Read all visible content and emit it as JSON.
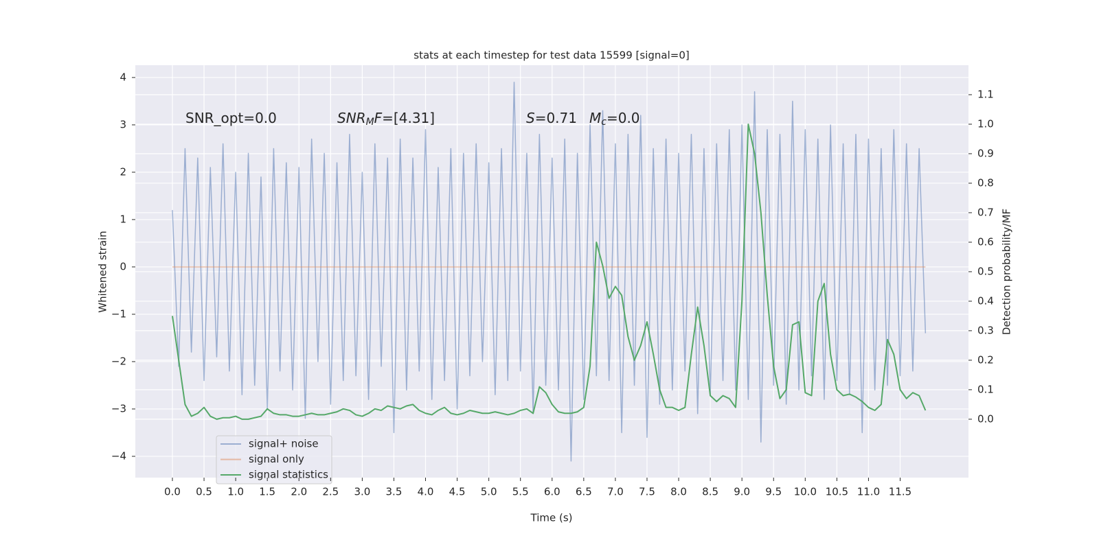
{
  "chart_data": {
    "type": "line",
    "title": "stats at each timestep for test data 15599 [signal=0]",
    "xlabel": "Time (s)",
    "ylabel": "Whitened strain",
    "y2label": "Detection probability/MF",
    "annotations": [
      {
        "parts": [
          {
            "text": "SNR_opt=0.0"
          }
        ]
      },
      {
        "parts": [
          {
            "text": "SNR",
            "italic": true
          },
          {
            "text": "M",
            "italic": true,
            "sub": true
          },
          {
            "text": "F",
            "italic": true
          },
          {
            "text": "=[4.31]"
          }
        ]
      },
      {
        "parts": [
          {
            "text": "S",
            "italic": true
          },
          {
            "text": "=0.71"
          }
        ]
      },
      {
        "parts": [
          {
            "text": "M",
            "italic": true
          },
          {
            "text": "c",
            "italic": true,
            "sub": true
          },
          {
            "text": "=0.0"
          }
        ]
      }
    ],
    "x": [
      0,
      0.1,
      0.2,
      0.3,
      0.4,
      0.5,
      0.6,
      0.7,
      0.8,
      0.9,
      1,
      1.1,
      1.2,
      1.3,
      1.4,
      1.5,
      1.6,
      1.7,
      1.8,
      1.9,
      2,
      2.1,
      2.2,
      2.3,
      2.4,
      2.5,
      2.6,
      2.7,
      2.8,
      2.9,
      3,
      3.1,
      3.2,
      3.3,
      3.4,
      3.5,
      3.6,
      3.7,
      3.8,
      3.9,
      4,
      4.1,
      4.2,
      4.3,
      4.4,
      4.5,
      4.6,
      4.7,
      4.8,
      4.9,
      5,
      5.1,
      5.2,
      5.3,
      5.4,
      5.5,
      5.6,
      5.7,
      5.8,
      5.9,
      6,
      6.1,
      6.2,
      6.3,
      6.4,
      6.5,
      6.6,
      6.7,
      6.8,
      6.9,
      7,
      7.1,
      7.2,
      7.3,
      7.4,
      7.5,
      7.6,
      7.7,
      7.8,
      7.9,
      8,
      8.1,
      8.2,
      8.3,
      8.4,
      8.5,
      8.6,
      8.7,
      8.8,
      8.9,
      9,
      9.1,
      9.2,
      9.3,
      9.4,
      9.5,
      9.6,
      9.7,
      9.8,
      9.9,
      10,
      10.1,
      10.2,
      10.3,
      10.4,
      10.5,
      10.6,
      10.7,
      10.8,
      10.9,
      11,
      11.1,
      11.2,
      11.3,
      11.4,
      11.5,
      11.6,
      11.7,
      11.8,
      11.9
    ],
    "series": [
      {
        "name": "signal+ noise",
        "color": "#4c72b0",
        "opacity": 0.5,
        "values": [
          1.2,
          -2.1,
          2.5,
          -1.8,
          2.3,
          -2.4,
          2.1,
          -1.9,
          2.6,
          -2.2,
          2.0,
          -2.7,
          2.4,
          -2.5,
          1.9,
          -3.0,
          2.5,
          -2.2,
          2.2,
          -2.6,
          2.1,
          -3.2,
          2.7,
          -2.0,
          2.4,
          -2.9,
          2.2,
          -2.4,
          2.8,
          -2.3,
          2.0,
          -2.8,
          2.6,
          -2.1,
          2.3,
          -3.5,
          2.7,
          -2.6,
          2.3,
          -2.2,
          2.9,
          -2.8,
          2.1,
          -2.4,
          2.5,
          -3.0,
          2.4,
          -2.3,
          2.6,
          -2.0,
          2.2,
          -2.7,
          2.5,
          -2.4,
          3.9,
          -2.2,
          2.4,
          -3.1,
          2.8,
          -2.5,
          2.3,
          -2.6,
          2.7,
          -4.1,
          2.4,
          -2.8,
          3.0,
          -2.3,
          3.3,
          -2.4,
          2.6,
          -3.5,
          2.8,
          -2.5,
          3.2,
          -3.6,
          2.5,
          -2.9,
          2.7,
          -2.6,
          2.4,
          -2.2,
          2.8,
          -3.1,
          2.5,
          -2.7,
          2.6,
          -2.4,
          2.9,
          -2.6,
          3.0,
          -2.8,
          3.7,
          -3.7,
          2.9,
          -2.5,
          2.8,
          -2.9,
          3.5,
          -2.6,
          2.9,
          -2.3,
          2.7,
          -2.8,
          3.0,
          -2.4,
          2.6,
          -2.7,
          2.8,
          -3.5,
          2.7,
          -2.6,
          2.5,
          -2.5,
          2.9,
          -2.3,
          2.6,
          -2.2,
          2.5,
          -1.4
        ]
      },
      {
        "name": "signal only",
        "color": "#dd8452",
        "opacity": 0.5,
        "x": [
          0,
          11.9
        ],
        "values": [
          0,
          0
        ]
      },
      {
        "name": "signal statistics",
        "color": "#55a868",
        "opacity": 1,
        "axis": "y2",
        "values": [
          0.35,
          0.2,
          0.05,
          0.01,
          0.02,
          0.04,
          0.01,
          0.0,
          0.005,
          0.005,
          0.01,
          0.0,
          0.0,
          0.005,
          0.01,
          0.035,
          0.02,
          0.015,
          0.015,
          0.01,
          0.01,
          0.015,
          0.02,
          0.015,
          0.015,
          0.02,
          0.025,
          0.035,
          0.03,
          0.015,
          0.01,
          0.02,
          0.035,
          0.03,
          0.045,
          0.04,
          0.035,
          0.045,
          0.05,
          0.03,
          0.02,
          0.015,
          0.03,
          0.04,
          0.02,
          0.015,
          0.02,
          0.03,
          0.025,
          0.02,
          0.02,
          0.025,
          0.02,
          0.015,
          0.02,
          0.03,
          0.035,
          0.02,
          0.11,
          0.09,
          0.05,
          0.025,
          0.02,
          0.02,
          0.025,
          0.04,
          0.18,
          0.6,
          0.52,
          0.41,
          0.45,
          0.42,
          0.28,
          0.2,
          0.25,
          0.33,
          0.22,
          0.1,
          0.04,
          0.04,
          0.03,
          0.04,
          0.22,
          0.38,
          0.25,
          0.08,
          0.06,
          0.08,
          0.07,
          0.04,
          0.4,
          1.0,
          0.9,
          0.7,
          0.42,
          0.18,
          0.07,
          0.1,
          0.32,
          0.33,
          0.09,
          0.08,
          0.4,
          0.46,
          0.22,
          0.1,
          0.08,
          0.085,
          0.075,
          0.06,
          0.04,
          0.03,
          0.05,
          0.27,
          0.22,
          0.1,
          0.07,
          0.09,
          0.08,
          0.03
        ]
      }
    ],
    "xlim": [
      -0.586,
      12.58
    ],
    "xticks": [
      {
        "value": 0,
        "label": "0.0"
      },
      0.5,
      {
        "value": 1,
        "label": "1.0"
      },
      1.5,
      {
        "value": 2,
        "label": "2.0"
      },
      2.5,
      {
        "value": 3,
        "label": "3.0"
      },
      3.5,
      {
        "value": 4,
        "label": "4.0"
      },
      4.5,
      {
        "value": 5,
        "label": "5.0"
      },
      5.5,
      {
        "value": 6,
        "label": "6.0"
      },
      6.5,
      {
        "value": 7,
        "label": "7.0"
      },
      7.5,
      {
        "value": 8,
        "label": "8.0"
      },
      8.5,
      {
        "value": 9,
        "label": "9.0"
      },
      9.5,
      {
        "value": 10,
        "label": "10.0"
      },
      10.5,
      {
        "value": 11,
        "label": "11.0"
      },
      11.5
    ],
    "ylim": [
      -4.45,
      4.26
    ],
    "yticks": [
      {
        "value": -4,
        "label": "−4"
      },
      {
        "value": -3,
        "label": "−3"
      },
      {
        "value": -2,
        "label": "−2"
      },
      {
        "value": -1,
        "label": "−1"
      },
      0,
      1,
      2,
      3,
      4
    ],
    "y2lim": [
      -0.198,
      1.2
    ],
    "y2ticks": [
      {
        "value": 0,
        "label": "0.0"
      },
      0.1,
      0.2,
      0.3,
      0.4,
      0.5,
      0.6,
      0.7,
      0.8,
      0.9,
      {
        "value": 1,
        "label": "1.0"
      },
      1.1
    ],
    "grid": true,
    "legend": "lower left"
  }
}
